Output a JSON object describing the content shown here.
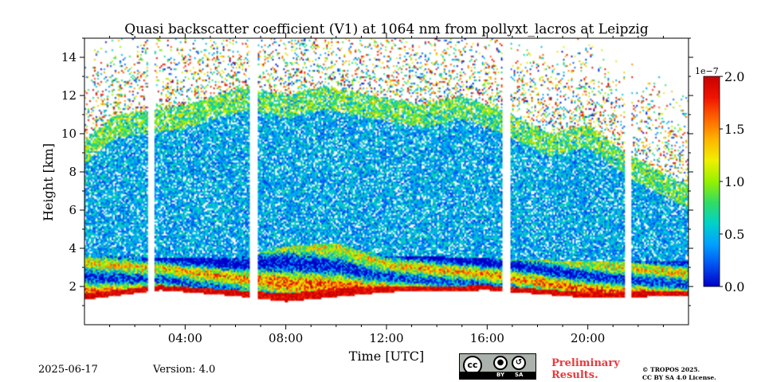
{
  "chart_data": {
    "type": "heatmap",
    "title": "Quasi backscatter coefficient (V1) at 1064 nm from pollyxt_lacros at Leipzig",
    "xlabel": "Time [UTC]",
    "ylabel": "Height [km]",
    "xlim_hours": [
      0,
      24
    ],
    "ylim_km": [
      0,
      15
    ],
    "x_ticks": [
      {
        "value": 4,
        "label": "04:00"
      },
      {
        "value": 8,
        "label": "08:00"
      },
      {
        "value": 12,
        "label": "12:00"
      },
      {
        "value": 16,
        "label": "16:00"
      },
      {
        "value": 20,
        "label": "20:00"
      }
    ],
    "y_ticks": [
      {
        "value": 2,
        "label": "2"
      },
      {
        "value": 4,
        "label": "4"
      },
      {
        "value": 6,
        "label": "6"
      },
      {
        "value": 8,
        "label": "8"
      },
      {
        "value": 10,
        "label": "10"
      },
      {
        "value": 12,
        "label": "12"
      },
      {
        "value": 14,
        "label": "14"
      }
    ],
    "colorbar": {
      "multiplier_label": "1e−7",
      "range": [
        0,
        2.0
      ],
      "ticks": [
        {
          "value": 0.0,
          "label": "0.0"
        },
        {
          "value": 0.5,
          "label": "0.5"
        },
        {
          "value": 1.0,
          "label": "1.0"
        },
        {
          "value": 1.5,
          "label": "1.5"
        },
        {
          "value": 2.0,
          "label": "2.0"
        }
      ],
      "colors": [
        "#0000c8",
        "#0050f0",
        "#00a0ff",
        "#00d2c8",
        "#32dc64",
        "#96f000",
        "#f0f000",
        "#ffb400",
        "#ff6400",
        "#f01400",
        "#c80000"
      ]
    },
    "data_gaps_hours": [
      [
        2.5,
        2.8
      ],
      [
        6.6,
        6.9
      ],
      [
        16.6,
        16.95
      ],
      [
        21.5,
        21.75
      ]
    ],
    "cloud_top_profile": [
      {
        "t": 0.0,
        "h": 9.6
      },
      {
        "t": 1.2,
        "h": 11.0
      },
      {
        "t": 2.5,
        "h": 11.2
      },
      {
        "t": 4.0,
        "h": 11.5
      },
      {
        "t": 6.5,
        "h": 12.5
      },
      {
        "t": 8.0,
        "h": 12.0
      },
      {
        "t": 9.5,
        "h": 12.5
      },
      {
        "t": 11.5,
        "h": 12.0
      },
      {
        "t": 13.5,
        "h": 11.5
      },
      {
        "t": 15.0,
        "h": 12.0
      },
      {
        "t": 17.0,
        "h": 11.0
      },
      {
        "t": 18.5,
        "h": 10.0
      },
      {
        "t": 20.0,
        "h": 10.5
      },
      {
        "t": 21.5,
        "h": 9.0
      },
      {
        "t": 22.5,
        "h": 8.3
      },
      {
        "t": 24.0,
        "h": 7.3
      }
    ],
    "boundary_layer_top_profile": [
      {
        "t": 0.0,
        "h": 3.6
      },
      {
        "t": 3.0,
        "h": 3.5
      },
      {
        "t": 6.0,
        "h": 3.5
      },
      {
        "t": 8.0,
        "h": 4.1
      },
      {
        "t": 10.0,
        "h": 4.3
      },
      {
        "t": 12.0,
        "h": 3.6
      },
      {
        "t": 16.0,
        "h": 3.5
      },
      {
        "t": 20.0,
        "h": 3.3
      },
      {
        "t": 24.0,
        "h": 3.3
      }
    ],
    "ground_signal_bottom_profile": [
      {
        "t": 0.0,
        "h": 1.3
      },
      {
        "t": 3.0,
        "h": 1.8
      },
      {
        "t": 6.0,
        "h": 1.5
      },
      {
        "t": 8.0,
        "h": 1.2
      },
      {
        "t": 12.0,
        "h": 1.7
      },
      {
        "t": 16.0,
        "h": 1.8
      },
      {
        "t": 20.0,
        "h": 1.4
      },
      {
        "t": 24.0,
        "h": 1.5
      }
    ]
  },
  "footer": {
    "date": "2025-06-17",
    "version": "Version: 4.0",
    "license_badge": {
      "by": "BY",
      "sa": "SA",
      "cc": "cc"
    },
    "preliminary_line1": "Preliminary",
    "preliminary_line2": "Results.",
    "copyright_line1": "© TROPOS 2025.",
    "copyright_line2": "CC BY SA 4.0 License."
  }
}
